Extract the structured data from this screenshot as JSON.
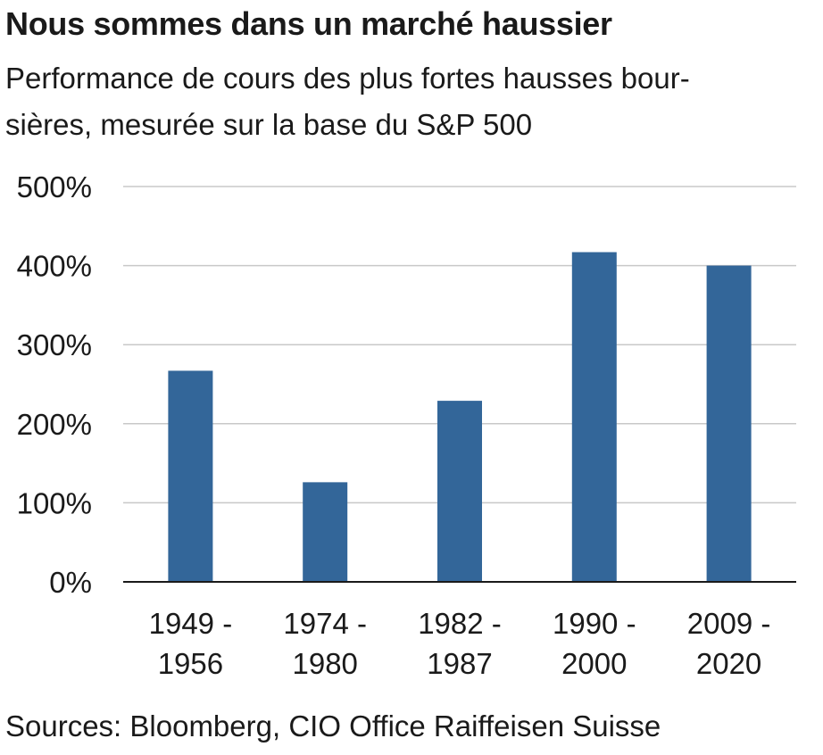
{
  "title": "Nous sommes dans un marché haussier",
  "subtitle_line1": "Performance de cours des plus fortes hausses bour-",
  "subtitle_line2": "sières, mesurée sur la base du S&P 500",
  "source": "Sources: Bloomberg, CIO Office Raiffeisen Suisse",
  "colors": {
    "bar": "#336699",
    "grid": "#c8c8c8",
    "axis": "#1a1a1a"
  },
  "chart_data": {
    "type": "bar",
    "title": "Nous sommes dans un marché haussier",
    "subtitle": "Performance de cours des plus fortes hausses boursières, mesurée sur la base du S&P 500",
    "categories": [
      [
        "1949 -",
        "1956"
      ],
      [
        "1974 -",
        "1980"
      ],
      [
        "1982 -",
        "1987"
      ],
      [
        "1990 -",
        "2000"
      ],
      [
        "2009 -",
        "2020"
      ]
    ],
    "values": [
      267,
      126,
      229,
      417,
      400
    ],
    "unit": "%",
    "ylim": [
      0,
      500
    ],
    "yticks": [
      0,
      100,
      200,
      300,
      400,
      500
    ],
    "ytick_labels": [
      "0%",
      "100%",
      "200%",
      "300%",
      "400%",
      "500%"
    ],
    "grid": true,
    "legend": "none"
  }
}
